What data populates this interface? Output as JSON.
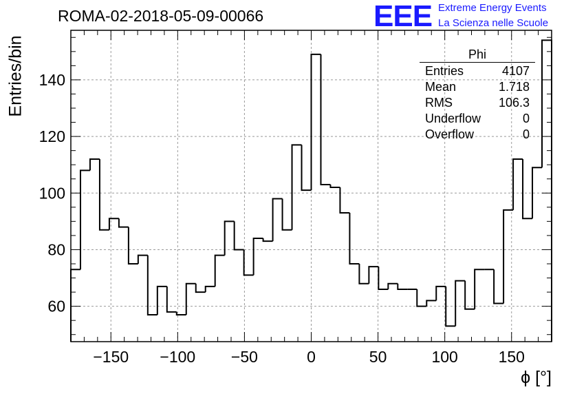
{
  "header": {
    "title": "ROMA-02-2018-05-09-00066",
    "logo_text": "EEE",
    "logo_line1": "Extreme Energy Events",
    "logo_line2": "La Scienza nelle Scuole"
  },
  "stats_box": {
    "name": "Phi",
    "rows": [
      {
        "label": "Entries",
        "value": "4107"
      },
      {
        "label": "Mean",
        "value": "1.718"
      },
      {
        "label": "RMS",
        "value": "106.3"
      },
      {
        "label": "Underflow",
        "value": "0"
      },
      {
        "label": "Overflow",
        "value": "0"
      }
    ]
  },
  "colors": {
    "logo": "#1a1aff",
    "line": "#000000",
    "grid": "#999999"
  },
  "chart_data": {
    "type": "bar",
    "style": "step-histogram",
    "xlabel": "ϕ [°]",
    "ylabel": "Entries/bin",
    "xlim": [
      -180,
      180
    ],
    "ylim": [
      47.5,
      157.5
    ],
    "grid": true,
    "bin_width": 7.2,
    "xticks": [
      -150,
      -100,
      -50,
      0,
      50,
      100,
      150
    ],
    "xtick_labels": [
      "−150",
      "−100",
      "−50",
      "0",
      "50",
      "100",
      "150"
    ],
    "yticks": [
      60,
      80,
      100,
      120,
      140
    ],
    "ytick_labels": [
      "60",
      "80",
      "100",
      "120",
      "140"
    ],
    "values": [
      73,
      108,
      112,
      87,
      91,
      88,
      75,
      78,
      57,
      67,
      58,
      57,
      68,
      65,
      67,
      78,
      90,
      80,
      71,
      84,
      83,
      98,
      87,
      117,
      101,
      149,
      103,
      102,
      93,
      75,
      68,
      74,
      66,
      68,
      66,
      66,
      60,
      62,
      67,
      53,
      69,
      59,
      73,
      73,
      61,
      94,
      112,
      91,
      109,
      154
    ]
  }
}
